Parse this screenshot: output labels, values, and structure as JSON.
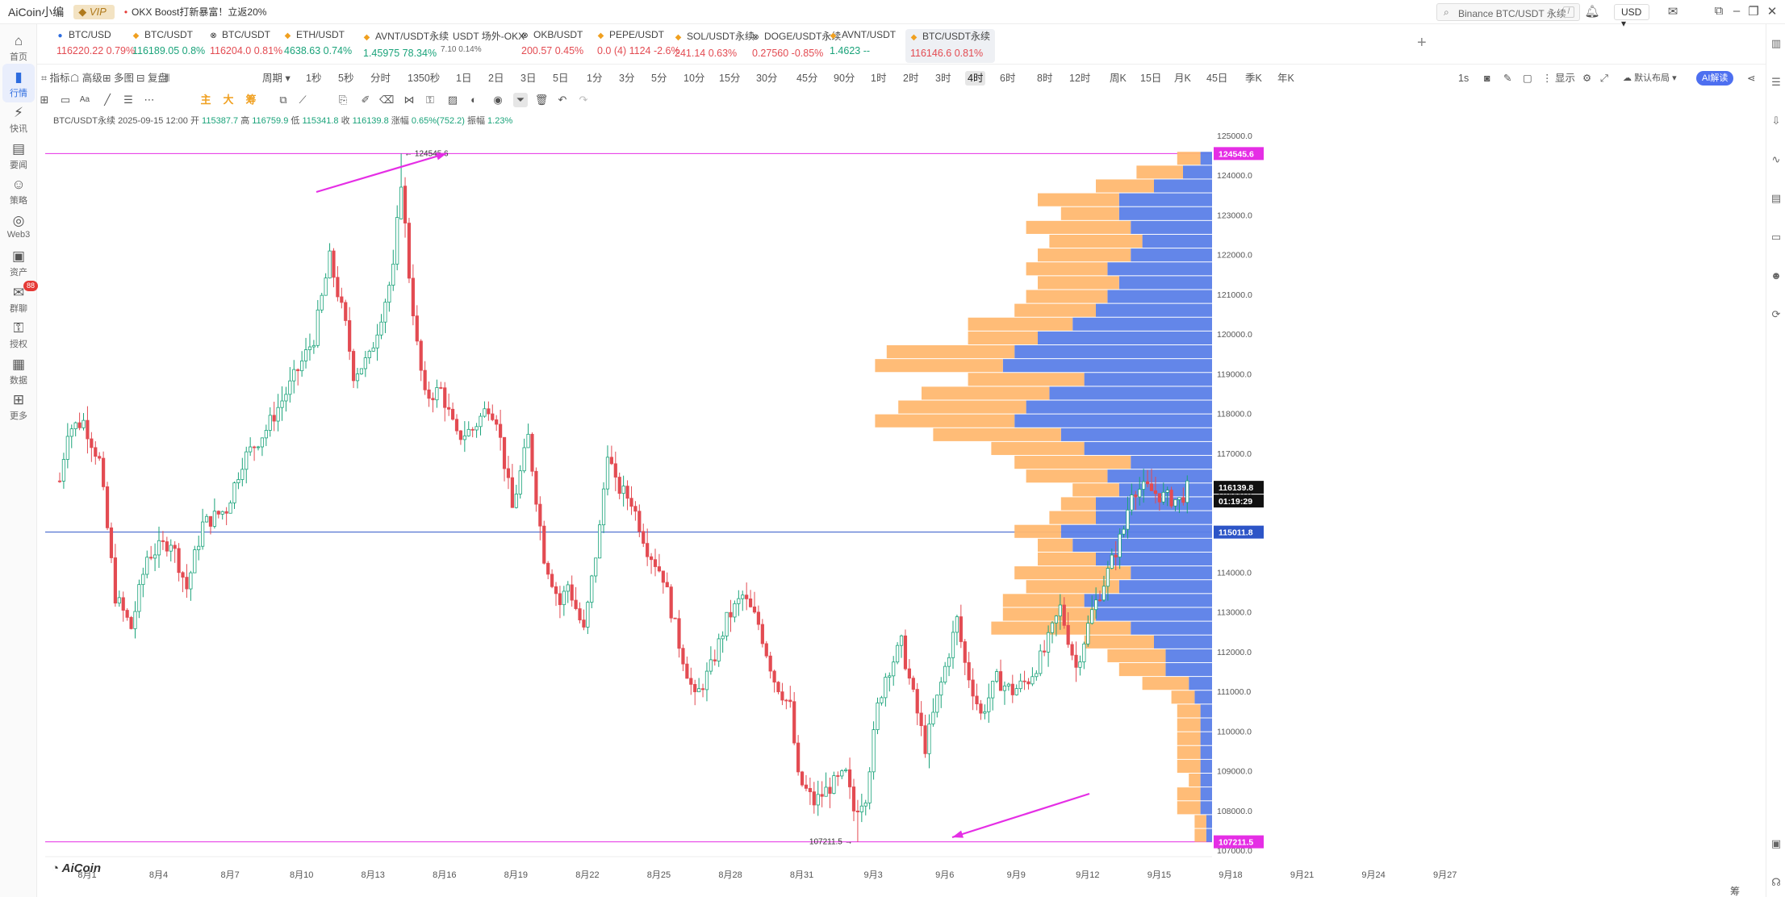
{
  "titlebar": {
    "app_name": "AiCoin小编",
    "vip": "VIP",
    "promo": "OKX Boost打新暴富！立返20%",
    "search_placeholder": "Binance BTC/USDT 永续",
    "currency": "USD"
  },
  "left_rail": [
    {
      "label": "首页",
      "icon": "home-icon"
    },
    {
      "label": "行情",
      "icon": "chart-bars-icon",
      "active": true
    },
    {
      "label": "快讯",
      "icon": "flash-news-icon"
    },
    {
      "label": "要闻",
      "icon": "news-icon"
    },
    {
      "label": "策略",
      "icon": "robot-icon"
    },
    {
      "label": "Web3",
      "icon": "web3-icon"
    },
    {
      "label": "资产",
      "icon": "wallet-icon"
    },
    {
      "label": "群聊",
      "icon": "chat-icon",
      "badge": "88"
    },
    {
      "label": "授权",
      "icon": "auth-icon"
    },
    {
      "label": "数据",
      "icon": "data-icon"
    },
    {
      "label": "更多",
      "icon": "more-grid-icon"
    }
  ],
  "tickers": [
    {
      "name": "BTC/USD",
      "price": "116220.22",
      "change": "0.79%",
      "dir": "dn",
      "ex": "coinbase"
    },
    {
      "name": "BTC/USDT",
      "price": "116189.05",
      "change": "0.8%",
      "dir": "up",
      "ex": "binance"
    },
    {
      "name": "BTC/USDT",
      "price": "116204.0",
      "change": "0.81%",
      "dir": "dn",
      "ex": "okx"
    },
    {
      "name": "ETH/USDT",
      "price": "4638.63",
      "change": "0.74%",
      "dir": "up",
      "ex": "binance"
    },
    {
      "name": "AVNT/USDT永续",
      "price": "1.45975",
      "change": "78.34%",
      "dir": "up",
      "ex": "binance"
    },
    {
      "name": "USDT 场外-OKX",
      "price": "7.10",
      "change": "0.14%",
      "dir": "small",
      "ex": ""
    },
    {
      "name": "OKB/USDT",
      "price": "200.57",
      "change": "0.45%",
      "dir": "dn",
      "ex": "okx"
    },
    {
      "name": "PEPE/USDT",
      "price": "0.0 (4) 1124",
      "change": "-2.6%",
      "dir": "dn",
      "ex": "binance"
    },
    {
      "name": "SOL/USDT永续",
      "price": "241.14",
      "change": "0.63%",
      "dir": "dn",
      "ex": "binance"
    },
    {
      "name": "DOGE/USDT永续",
      "price": "0.27560",
      "change": "-0.85%",
      "dir": "dn",
      "ex": "okx"
    },
    {
      "name": "AVNT/USDT",
      "price": "1.4623",
      "change": "--",
      "dir": "up",
      "ex": "binance"
    },
    {
      "name": "BTC/USDT永续",
      "price": "116146.6",
      "change": "0.81%",
      "dir": "dn",
      "ex": "binance",
      "selected": true
    }
  ],
  "periodbar": {
    "left": [
      "指标",
      "高级",
      "多图",
      "复盘",
      "周期"
    ],
    "periods": [
      "1秒",
      "5秒",
      "分时",
      "1350秒",
      "1日",
      "2日",
      "3日",
      "5日",
      "1分",
      "3分",
      "5分",
      "10分",
      "15分",
      "30分",
      "45分",
      "90分",
      "1时",
      "2时",
      "3时",
      "4时",
      "6时",
      "8时",
      "12时",
      "周K",
      "15日",
      "月K",
      "45日",
      "季K",
      "年K"
    ],
    "selected": "4时",
    "right": [
      "1s",
      "显示",
      "默认布局",
      "AI解读"
    ]
  },
  "toolbar": {
    "main_labels": [
      "主",
      "大",
      "筹"
    ]
  },
  "infobar": {
    "symbol": "BTC/USDT永续",
    "time": "2025-09-15 12:00",
    "open_label": "开",
    "open": "115387.7",
    "high_label": "高",
    "high": "116759.9",
    "low_label": "低",
    "low": "115341.8",
    "close_label": "收",
    "close": "116139.8",
    "change_label": "涨幅",
    "change": "0.65%(752.2)",
    "amp_label": "振幅",
    "amp": "1.23%"
  },
  "chart": {
    "logo": "AiCoin",
    "corner_label": "筹",
    "colors": {
      "up": "#1aa37a",
      "down": "#e34b52",
      "vp_up": "#5b7fe8",
      "vp_down": "#ffb870",
      "marker": "#e52ee5",
      "hline": "#2d55c7"
    },
    "high_marker": "124545.6",
    "low_marker": "107211.5",
    "current_price": "116139.8",
    "countdown": "01:19:29",
    "poc_price": "115011.8",
    "yticks": [
      "125000.0",
      "124000.0",
      "123000.0",
      "122000.0",
      "121000.0",
      "120000.0",
      "119000.0",
      "118000.0",
      "117000.0",
      "116000.0",
      "115000.0",
      "114000.0",
      "113000.0",
      "112000.0",
      "111000.0",
      "110000.0",
      "109000.0",
      "108000.0",
      "107000.0"
    ],
    "xticks": [
      "8月1",
      "8月4",
      "8月7",
      "8月10",
      "8月13",
      "8月16",
      "8月19",
      "8月22",
      "8月25",
      "8月28",
      "8月31",
      "9月3",
      "9月6",
      "9月9",
      "9月12",
      "9月15",
      "9月18",
      "9月21",
      "9月24",
      "9月27"
    ]
  },
  "chart_data": {
    "type": "candlestick",
    "interval": "4时",
    "x_start": "2025-07-31",
    "y_range": [
      107000,
      125000
    ],
    "anchors": [
      [
        0,
        116300
      ],
      [
        2,
        117600
      ],
      [
        6,
        117800
      ],
      [
        10,
        116800
      ],
      [
        14,
        113400
      ],
      [
        18,
        112600
      ],
      [
        22,
        114400
      ],
      [
        28,
        114800
      ],
      [
        32,
        113600
      ],
      [
        36,
        115200
      ],
      [
        42,
        115600
      ],
      [
        46,
        116800
      ],
      [
        52,
        117600
      ],
      [
        58,
        118700
      ],
      [
        64,
        119900
      ],
      [
        68,
        121900
      ],
      [
        72,
        120200
      ],
      [
        74,
        119000
      ],
      [
        78,
        119400
      ],
      [
        84,
        121600
      ],
      [
        86,
        123900
      ],
      [
        88,
        121500
      ],
      [
        90,
        119700
      ],
      [
        92,
        118400
      ],
      [
        96,
        118600
      ],
      [
        100,
        117400
      ],
      [
        104,
        117600
      ],
      [
        108,
        118200
      ],
      [
        110,
        117900
      ],
      [
        114,
        115600
      ],
      [
        118,
        117400
      ],
      [
        122,
        114400
      ],
      [
        126,
        113200
      ],
      [
        128,
        113700
      ],
      [
        132,
        112500
      ],
      [
        136,
        115100
      ],
      [
        138,
        117100
      ],
      [
        140,
        116200
      ],
      [
        144,
        115800
      ],
      [
        148,
        114600
      ],
      [
        152,
        113900
      ],
      [
        156,
        112200
      ],
      [
        160,
        110800
      ],
      [
        164,
        111600
      ],
      [
        168,
        112800
      ],
      [
        172,
        113400
      ],
      [
        176,
        112700
      ],
      [
        180,
        111300
      ],
      [
        184,
        110600
      ],
      [
        186,
        108800
      ],
      [
        190,
        108200
      ],
      [
        194,
        108600
      ],
      [
        198,
        108900
      ],
      [
        200,
        108000
      ],
      [
        203,
        108400
      ],
      [
        206,
        110600
      ],
      [
        208,
        111400
      ],
      [
        212,
        112200
      ],
      [
        214,
        111300
      ],
      [
        218,
        109600
      ],
      [
        222,
        111200
      ],
      [
        226,
        112800
      ],
      [
        228,
        111700
      ],
      [
        232,
        110400
      ],
      [
        236,
        111300
      ],
      [
        240,
        111000
      ],
      [
        244,
        111300
      ],
      [
        248,
        112000
      ],
      [
        252,
        113100
      ],
      [
        256,
        111600
      ],
      [
        260,
        113000
      ],
      [
        264,
        114000
      ],
      [
        268,
        115100
      ],
      [
        270,
        116100
      ],
      [
        274,
        116100
      ],
      [
        278,
        115900
      ],
      [
        282,
        115800
      ],
      [
        284,
        116100
      ]
    ],
    "volume_profile": {
      "price_range": [
        107200,
        124600
      ],
      "up_volume": [
        2,
        5,
        10,
        16,
        16,
        14,
        12,
        14,
        18,
        16,
        18,
        20,
        24,
        30,
        34,
        36,
        22,
        28,
        32,
        34,
        26,
        22,
        14,
        18,
        16,
        20,
        20,
        26,
        24,
        20,
        14,
        16,
        22,
        20,
        14,
        10,
        8,
        8,
        4,
        3,
        2,
        2,
        2,
        2,
        2,
        2,
        2,
        2,
        1,
        1
      ],
      "down_volume": [
        4,
        8,
        10,
        14,
        10,
        18,
        16,
        16,
        14,
        14,
        14,
        14,
        18,
        12,
        22,
        22,
        20,
        22,
        22,
        24,
        22,
        16,
        20,
        14,
        8,
        6,
        8,
        8,
        6,
        10,
        20,
        16,
        14,
        16,
        24,
        12,
        10,
        8,
        8,
        4,
        4,
        4,
        4,
        4,
        4,
        2,
        4,
        4,
        2,
        2
      ]
    }
  }
}
